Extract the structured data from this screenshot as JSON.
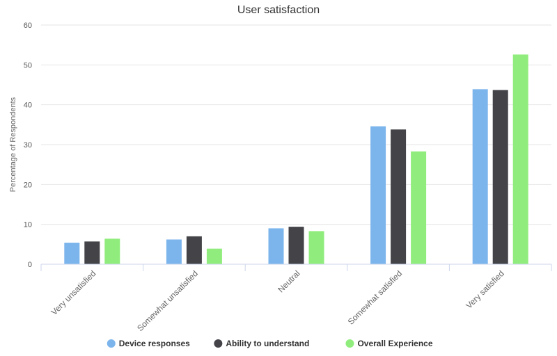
{
  "chart_data": {
    "type": "bar",
    "title": "User satisfaction",
    "xlabel": "",
    "ylabel": "Percentage of Respondents",
    "ylim": [
      0,
      60
    ],
    "yticks": [
      0,
      10,
      20,
      30,
      40,
      50,
      60
    ],
    "categories": [
      "Very unsatisfied",
      "Somewhat unsatisfied",
      "Neutral",
      "Somewhat satisfied",
      "Very satisfied"
    ],
    "series": [
      {
        "name": "Device responses",
        "color": "#7cb5ec",
        "values": [
          5.4,
          6.2,
          9.0,
          34.6,
          43.9
        ]
      },
      {
        "name": "Ability to understand",
        "color": "#434348",
        "values": [
          5.7,
          7.0,
          9.4,
          33.8,
          43.7
        ]
      },
      {
        "name": "Overall Experience",
        "color": "#90ed7d",
        "values": [
          6.4,
          3.9,
          8.3,
          28.3,
          52.6
        ]
      }
    ],
    "grid": true,
    "legend_position": "bottom-center"
  }
}
